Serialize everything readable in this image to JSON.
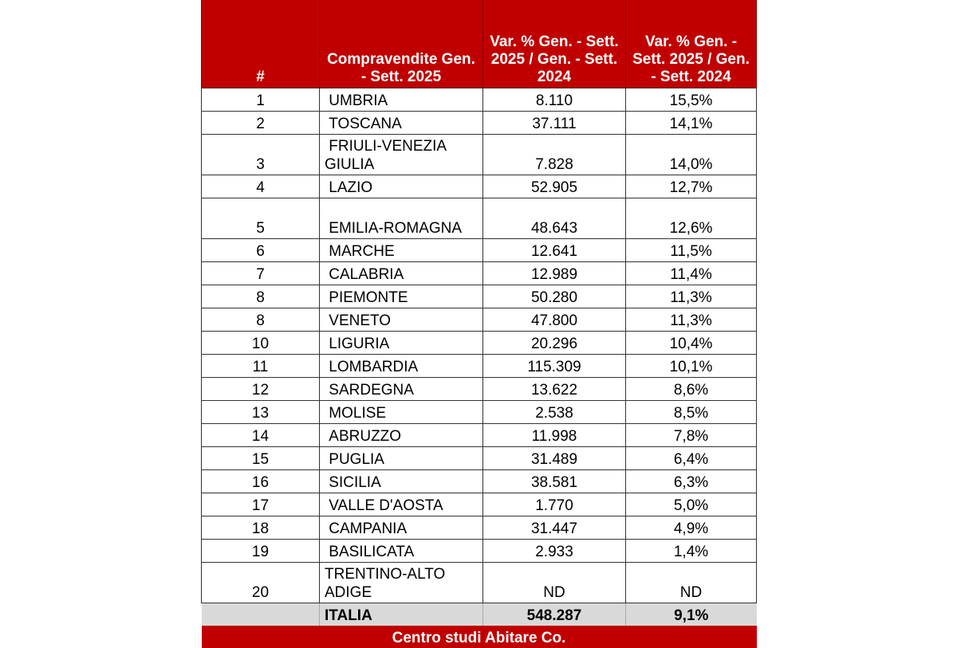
{
  "header": {
    "rank": "#",
    "sales": "Compravendite Gen. - Sett. 2025",
    "var_a": "Var. % Gen. - Sett. 2025 / Gen. - Sett. 2024",
    "var_b": "Var. % Gen. - Sett. 2025 / Gen. - Sett. 2024"
  },
  "rows": [
    {
      "rank": "1",
      "region": " UMBRIA",
      "sales": "8.110",
      "var": "15,5%"
    },
    {
      "rank": "2",
      "region": " TOSCANA",
      "sales": "37.111",
      "var": "14,1%"
    },
    {
      "rank": "3",
      "region": " FRIULI-VENEZIA GIULIA",
      "sales": "7.828",
      "var": "14,0%",
      "tall": true
    },
    {
      "rank": "4",
      "region": " LAZIO",
      "sales": "52.905",
      "var": "12,7%"
    },
    {
      "rank": "5",
      "region": " EMILIA-ROMAGNA",
      "sales": "48.643",
      "var": "12,6%",
      "tall": true
    },
    {
      "rank": "6",
      "region": " MARCHE",
      "sales": "12.641",
      "var": "11,5%"
    },
    {
      "rank": "7",
      "region": " CALABRIA",
      "sales": "12.989",
      "var": "11,4%"
    },
    {
      "rank": "8",
      "region": " PIEMONTE",
      "sales": "50.280",
      "var": "11,3%"
    },
    {
      "rank": "8",
      "region": " VENETO",
      "sales": "47.800",
      "var": "11,3%"
    },
    {
      "rank": "10",
      "region": " LIGURIA",
      "sales": "20.296",
      "var": "10,4%"
    },
    {
      "rank": "11",
      "region": " LOMBARDIA",
      "sales": "115.309",
      "var": "10,1%"
    },
    {
      "rank": "12",
      "region": " SARDEGNA",
      "sales": "13.622",
      "var": "8,6%"
    },
    {
      "rank": "13",
      "region": " MOLISE",
      "sales": "2.538",
      "var": "8,5%"
    },
    {
      "rank": "14",
      "region": " ABRUZZO",
      "sales": "11.998",
      "var": "7,8%"
    },
    {
      "rank": "15",
      "region": " PUGLIA",
      "sales": "31.489",
      "var": "6,4%"
    },
    {
      "rank": "16",
      "region": " SICILIA",
      "sales": "38.581",
      "var": "6,3%"
    },
    {
      "rank": "17",
      "region": " VALLE D'AOSTA",
      "sales": "1.770",
      "var": "5,0%"
    },
    {
      "rank": "18",
      "region": " CAMPANIA",
      "sales": "31.447",
      "var": "4,9%"
    },
    {
      "rank": "19",
      "region": " BASILICATA",
      "sales": "2.933",
      "var": "1,4%"
    },
    {
      "rank": "20",
      "region": "TRENTINO-ALTO ADIGE",
      "sales": "ND",
      "var": "ND",
      "tall": true
    }
  ],
  "total": {
    "rank": "",
    "region": "ITALIA",
    "sales": "548.287",
    "var": "9,1%"
  },
  "footer": "Centro studi Abitare Co.",
  "colors": {
    "header_bg": "#c00000",
    "total_bg": "#d9d9d9"
  }
}
